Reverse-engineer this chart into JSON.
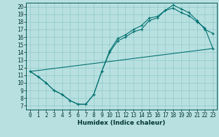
{
  "xlabel": "Humidex (Indice chaleur)",
  "bg_color": "#b8e0e0",
  "line_color": "#007070",
  "grid_color": "#90c8c8",
  "xlim": [
    -0.5,
    23.5
  ],
  "ylim": [
    6.5,
    20.5
  ],
  "xticks": [
    0,
    1,
    2,
    3,
    4,
    5,
    6,
    7,
    8,
    9,
    10,
    11,
    12,
    13,
    14,
    15,
    16,
    17,
    18,
    19,
    20,
    21,
    22,
    23
  ],
  "yticks": [
    7,
    8,
    9,
    10,
    11,
    12,
    13,
    14,
    15,
    16,
    17,
    18,
    19,
    20
  ],
  "curve1_x": [
    0,
    1,
    2,
    3,
    4,
    5,
    6,
    7,
    8,
    9,
    10,
    11,
    12,
    13,
    14,
    15,
    16,
    17,
    18,
    19,
    20,
    21,
    22,
    23
  ],
  "curve1_y": [
    11.5,
    10.8,
    10.0,
    9.0,
    8.5,
    7.7,
    7.2,
    7.2,
    8.5,
    11.5,
    14.2,
    15.8,
    16.3,
    17.0,
    17.5,
    18.5,
    18.7,
    19.5,
    20.2,
    19.7,
    19.2,
    18.2,
    17.0,
    16.5
  ],
  "curve2_x": [
    0,
    1,
    2,
    3,
    4,
    5,
    6,
    7,
    8,
    9,
    10,
    11,
    12,
    13,
    14,
    15,
    16,
    17,
    18,
    19,
    20,
    21,
    22,
    23
  ],
  "curve2_y": [
    11.5,
    10.8,
    10.0,
    9.0,
    8.5,
    7.7,
    7.2,
    7.2,
    8.5,
    11.5,
    14.0,
    15.5,
    16.0,
    16.7,
    17.0,
    18.2,
    18.5,
    19.5,
    19.8,
    19.2,
    18.8,
    18.0,
    17.2,
    14.5
  ],
  "line3_x": [
    0,
    23
  ],
  "line3_y": [
    11.5,
    14.5
  ],
  "tick_fontsize": 5.5,
  "xlabel_fontsize": 6.5
}
